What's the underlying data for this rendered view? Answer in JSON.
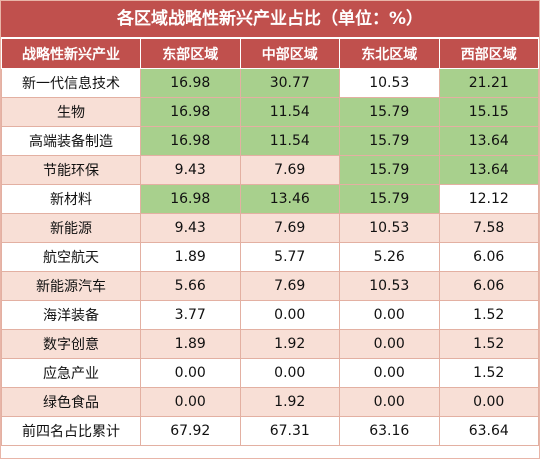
{
  "title": "各区域战略性新兴产业占比（单位：%）",
  "headers": [
    "战略性新兴产业",
    "东部区域",
    "中部区域",
    "东北区域",
    "西部区域"
  ],
  "colors": {
    "header_bg": "#c0504d",
    "alt_row": "#f8dfd6",
    "highlight": "#a8d08d"
  },
  "rows": [
    {
      "name": "新一代信息技术",
      "values": [
        "16.98",
        "30.77",
        "10.53",
        "21.21"
      ],
      "highlight": [
        true,
        true,
        false,
        true
      ]
    },
    {
      "name": "生物",
      "values": [
        "16.98",
        "11.54",
        "15.79",
        "15.15"
      ],
      "highlight": [
        true,
        true,
        true,
        true
      ]
    },
    {
      "name": "高端装备制造",
      "values": [
        "16.98",
        "11.54",
        "15.79",
        "13.64"
      ],
      "highlight": [
        true,
        true,
        true,
        true
      ]
    },
    {
      "name": "节能环保",
      "values": [
        "9.43",
        "7.69",
        "15.79",
        "13.64"
      ],
      "highlight": [
        false,
        false,
        true,
        true
      ]
    },
    {
      "name": "新材料",
      "values": [
        "16.98",
        "13.46",
        "15.79",
        "12.12"
      ],
      "highlight": [
        true,
        true,
        true,
        false
      ]
    },
    {
      "name": "新能源",
      "values": [
        "9.43",
        "7.69",
        "10.53",
        "7.58"
      ],
      "highlight": [
        false,
        false,
        false,
        false
      ]
    },
    {
      "name": "航空航天",
      "values": [
        "1.89",
        "5.77",
        "5.26",
        "6.06"
      ],
      "highlight": [
        false,
        false,
        false,
        false
      ]
    },
    {
      "name": "新能源汽车",
      "values": [
        "5.66",
        "7.69",
        "10.53",
        "6.06"
      ],
      "highlight": [
        false,
        false,
        false,
        false
      ]
    },
    {
      "name": "海洋装备",
      "values": [
        "3.77",
        "0.00",
        "0.00",
        "1.52"
      ],
      "highlight": [
        false,
        false,
        false,
        false
      ]
    },
    {
      "name": "数字创意",
      "values": [
        "1.89",
        "1.92",
        "0.00",
        "1.52"
      ],
      "highlight": [
        false,
        false,
        false,
        false
      ]
    },
    {
      "name": "应急产业",
      "values": [
        "0.00",
        "0.00",
        "0.00",
        "1.52"
      ],
      "highlight": [
        false,
        false,
        false,
        false
      ]
    },
    {
      "name": "绿色食品",
      "values": [
        "0.00",
        "1.92",
        "0.00",
        "0.00"
      ],
      "highlight": [
        false,
        false,
        false,
        false
      ]
    },
    {
      "name": "前四名占比累计",
      "values": [
        "67.92",
        "67.31",
        "63.16",
        "63.64"
      ],
      "highlight": [
        false,
        false,
        false,
        false
      ]
    }
  ]
}
